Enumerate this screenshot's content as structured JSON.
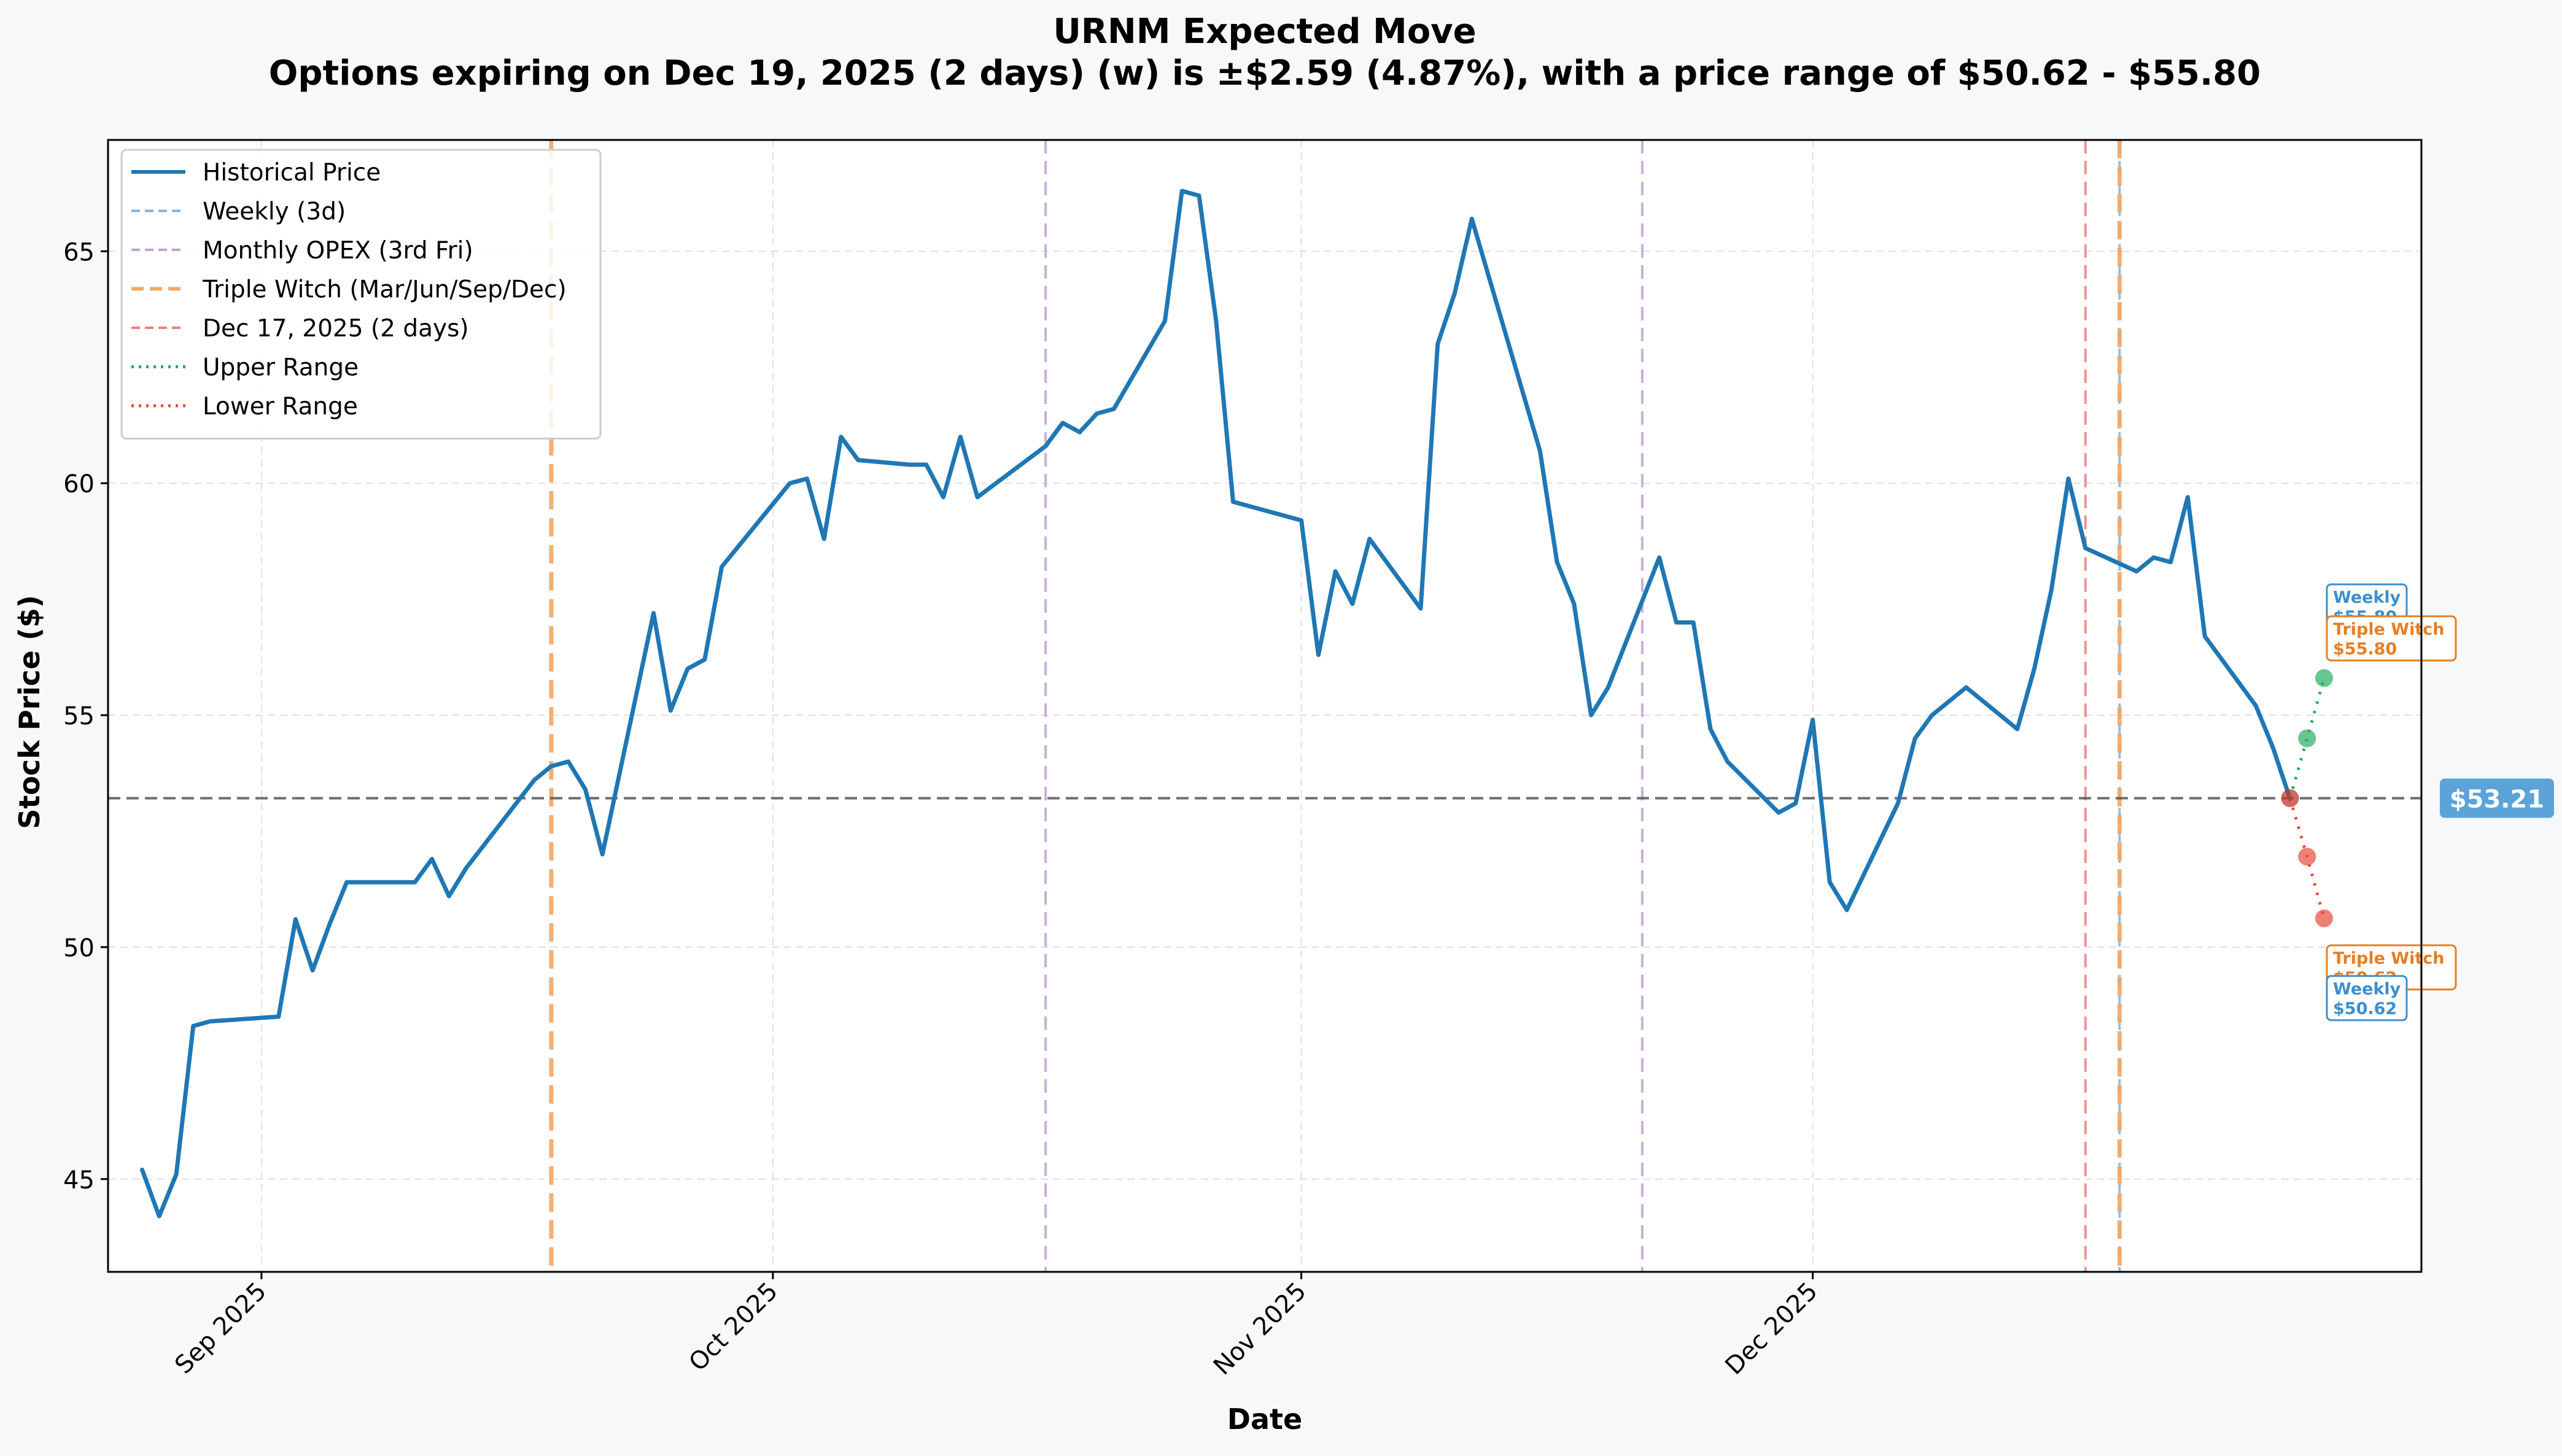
{
  "chart_data": {
    "type": "line",
    "title": "URNM Expected Move",
    "subtitle": "Options expiring on Dec 19, 2025 (2 days) (w) is ±$2.59 (4.87%), with a price range of $50.62 - $55.80",
    "xlabel": "Date",
    "ylabel": "Stock Price ($)",
    "ylim": [
      43.0,
      67.4
    ],
    "xlim": [
      "2025-08-23",
      "2025-12-29"
    ],
    "grid": true,
    "legend_position": "top-left",
    "x_ticks": [
      {
        "date": "2025-09-01",
        "label": "Sep 2025"
      },
      {
        "date": "2025-10-01",
        "label": "Oct 2025"
      },
      {
        "date": "2025-11-01",
        "label": "Nov 2025"
      },
      {
        "date": "2025-12-01",
        "label": "Dec 2025"
      }
    ],
    "y_ticks": [
      45,
      50,
      55,
      60,
      65
    ],
    "legend": [
      {
        "label": "Historical Price",
        "color": "#1f77b4",
        "style": "solid"
      },
      {
        "label": "Weekly (3d)",
        "color": "#7fb3e0",
        "style": "dashed"
      },
      {
        "label": "Monthly OPEX (3rd Fri)",
        "color": "#c49fd4",
        "style": "dashed"
      },
      {
        "label": "Triple Witch (Mar/Jun/Sep/Dec)",
        "color": "#f0a868",
        "style": "dashed-thick"
      },
      {
        "label": "Dec 17, 2025 (2 days)",
        "color": "#ee8080",
        "style": "dashed"
      },
      {
        "label": "Upper Range",
        "color": "#27ae60",
        "style": "dotted"
      },
      {
        "label": "Lower Range",
        "color": "#e74c3c",
        "style": "dotted"
      }
    ],
    "series": [
      {
        "name": "Historical Price",
        "color": "#1f77b4",
        "points": [
          [
            "2025-08-25",
            45.2
          ],
          [
            "2025-08-26",
            44.2
          ],
          [
            "2025-08-27",
            45.1
          ],
          [
            "2025-08-28",
            48.3
          ],
          [
            "2025-08-29",
            48.4
          ],
          [
            "2025-09-02",
            48.5
          ],
          [
            "2025-09-03",
            50.6
          ],
          [
            "2025-09-04",
            49.5
          ],
          [
            "2025-09-05",
            50.5
          ],
          [
            "2025-09-06",
            51.4
          ],
          [
            "2025-09-10",
            51.4
          ],
          [
            "2025-09-11",
            51.9
          ],
          [
            "2025-09-12",
            51.1
          ],
          [
            "2025-09-13",
            51.7
          ],
          [
            "2025-09-17",
            53.6
          ],
          [
            "2025-09-18",
            53.9
          ],
          [
            "2025-09-19",
            54.0
          ],
          [
            "2025-09-20",
            53.4
          ],
          [
            "2025-09-21",
            52.0
          ],
          [
            "2025-09-24",
            57.2
          ],
          [
            "2025-09-25",
            55.1
          ],
          [
            "2025-09-26",
            56.0
          ],
          [
            "2025-09-27",
            56.2
          ],
          [
            "2025-09-28",
            58.2
          ],
          [
            "2025-10-02",
            60.0
          ],
          [
            "2025-10-03",
            60.1
          ],
          [
            "2025-10-04",
            58.8
          ],
          [
            "2025-10-05",
            61.0
          ],
          [
            "2025-10-06",
            60.5
          ],
          [
            "2025-10-09",
            60.4
          ],
          [
            "2025-10-10",
            60.4
          ],
          [
            "2025-10-11",
            59.7
          ],
          [
            "2025-10-12",
            61.0
          ],
          [
            "2025-10-13",
            59.7
          ],
          [
            "2025-10-17",
            60.8
          ],
          [
            "2025-10-18",
            61.3
          ],
          [
            "2025-10-19",
            61.1
          ],
          [
            "2025-10-20",
            61.5
          ],
          [
            "2025-10-21",
            61.6
          ],
          [
            "2025-10-24",
            63.5
          ],
          [
            "2025-10-25",
            66.3
          ],
          [
            "2025-10-26",
            66.2
          ],
          [
            "2025-10-27",
            63.5
          ],
          [
            "2025-10-28",
            59.6
          ],
          [
            "2025-11-01",
            59.2
          ],
          [
            "2025-11-02",
            56.3
          ],
          [
            "2025-11-03",
            58.1
          ],
          [
            "2025-11-04",
            57.4
          ],
          [
            "2025-11-05",
            58.8
          ],
          [
            "2025-11-08",
            57.3
          ],
          [
            "2025-11-09",
            63.0
          ],
          [
            "2025-11-10",
            64.1
          ],
          [
            "2025-11-11",
            65.7
          ],
          [
            "2025-11-15",
            60.7
          ],
          [
            "2025-11-16",
            58.3
          ],
          [
            "2025-11-17",
            57.4
          ],
          [
            "2025-11-18",
            55.0
          ],
          [
            "2025-11-19",
            55.6
          ],
          [
            "2025-11-22",
            58.4
          ],
          [
            "2025-11-23",
            57.0
          ],
          [
            "2025-11-24",
            57.0
          ],
          [
            "2025-11-25",
            54.7
          ],
          [
            "2025-11-26",
            54.0
          ],
          [
            "2025-11-29",
            52.9
          ],
          [
            "2025-11-30",
            53.1
          ],
          [
            "2025-12-01",
            54.9
          ],
          [
            "2025-12-02",
            51.4
          ],
          [
            "2025-12-03",
            50.8
          ],
          [
            "2025-12-06",
            53.1
          ],
          [
            "2025-12-07",
            54.5
          ],
          [
            "2025-12-08",
            55.0
          ],
          [
            "2025-12-10",
            55.6
          ],
          [
            "2025-12-13",
            54.7
          ],
          [
            "2025-12-14",
            56.0
          ],
          [
            "2025-12-15",
            57.7
          ],
          [
            "2025-12-16",
            60.1
          ],
          [
            "2025-12-17",
            58.6
          ],
          [
            "2025-12-20",
            58.1
          ],
          [
            "2025-12-21",
            58.4
          ],
          [
            "2025-12-22",
            58.3
          ],
          [
            "2025-12-23",
            59.7
          ],
          [
            "2025-12-24",
            56.7
          ],
          [
            "2025-12-27",
            55.2
          ],
          [
            "2025-12-28",
            54.3
          ],
          [
            "2025-12-29",
            53.2
          ]
        ]
      },
      {
        "name": "Upper Range",
        "color": "#27ae60",
        "points": [
          [
            "2025-12-29",
            53.21
          ],
          [
            "2025-12-30",
            54.5
          ],
          [
            "2025-12-31",
            55.8
          ]
        ]
      },
      {
        "name": "Lower Range",
        "color": "#e74c3c",
        "points": [
          [
            "2025-12-29",
            53.21
          ],
          [
            "2025-12-30",
            51.95
          ],
          [
            "2025-12-31",
            50.62
          ]
        ]
      }
    ],
    "vertical_lines": [
      {
        "name": "Triple Witch",
        "date": "2025-09-18",
        "color": "#f0a868",
        "style": "dashed-thick"
      },
      {
        "name": "Monthly OPEX",
        "date": "2025-10-17",
        "color": "#c49fd4",
        "style": "dashed"
      },
      {
        "name": "Monthly OPEX",
        "date": "2025-11-21",
        "color": "#c49fd4",
        "style": "dashed"
      },
      {
        "name": "Dec 17, 2025",
        "date": "2025-12-17",
        "color": "#ee8080",
        "style": "dashed"
      },
      {
        "name": "Weekly",
        "date": "2025-12-19",
        "color": "#7fb3e0",
        "style": "dashed"
      },
      {
        "name": "Triple Witch",
        "date": "2025-12-19",
        "color": "#f0a868",
        "style": "dashed-thick"
      }
    ],
    "current_price": {
      "value": 53.21,
      "label": "$53.21",
      "color": "#5ba3d9"
    },
    "annotations": [
      {
        "name": "Weekly",
        "line1": "Weekly",
        "line2": "$55.80",
        "value": 55.8,
        "color": "#3b8fcf",
        "position": "upper"
      },
      {
        "name": "Triple Witch",
        "line1": "Triple Witch",
        "line2": "$55.80",
        "value": 55.8,
        "color": "#e67e22",
        "position": "upper"
      },
      {
        "name": "Triple Witch",
        "line1": "Triple Witch",
        "line2": "$50.62",
        "value": 50.62,
        "color": "#e67e22",
        "position": "lower"
      },
      {
        "name": "Weekly",
        "line1": "Weekly",
        "line2": "$50.62",
        "value": 50.62,
        "color": "#3b8fcf",
        "position": "lower"
      }
    ]
  }
}
